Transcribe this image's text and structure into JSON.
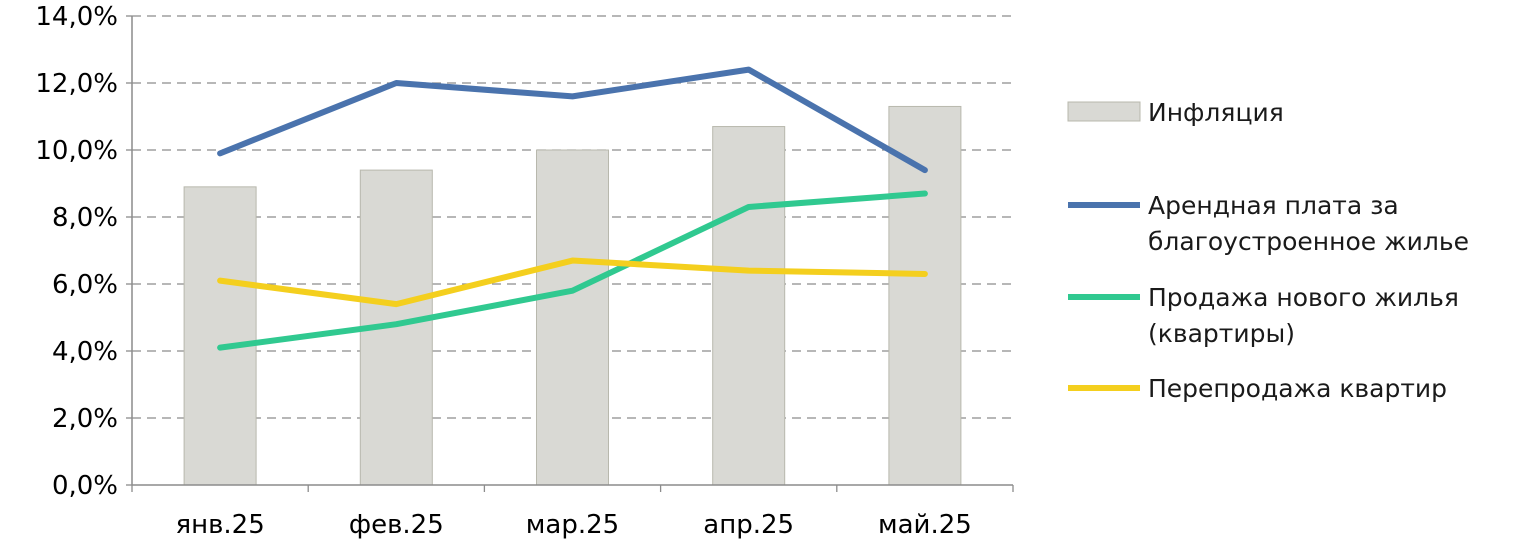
{
  "chart_data": {
    "type": "bar",
    "categories": [
      "янв.25",
      "фев.25",
      "мар.25",
      "апр.25",
      "май.25"
    ],
    "ylim": [
      0,
      14
    ],
    "y_ticks": [
      "0,0%",
      "2,0%",
      "4,0%",
      "6,0%",
      "8,0%",
      "10,0%",
      "12,0%",
      "14,0%"
    ],
    "grid": "horizontal dashed",
    "legend_position": "right",
    "series": [
      {
        "name": "Инфляция",
        "type": "bar",
        "color": "#d9d9d4",
        "values": [
          8.9,
          9.4,
          10.0,
          10.7,
          11.3
        ]
      },
      {
        "name": "Арендная плата за благоустроенное жилье",
        "name_lines": [
          "Арендная плата за",
          "благоустроенное жилье"
        ],
        "type": "line",
        "color": "#4a73ad",
        "values": [
          9.9,
          12.0,
          11.6,
          12.4,
          9.4
        ]
      },
      {
        "name": "Продажа нового жилья (квартиры)",
        "name_lines": [
          "Продажа нового жилья",
          "(квартиры)"
        ],
        "type": "line",
        "color": "#30c990",
        "values": [
          4.1,
          4.8,
          5.8,
          8.3,
          8.7
        ]
      },
      {
        "name": "Перепродажа квартир",
        "name_lines": [
          "Перепродажа квартир"
        ],
        "type": "line",
        "color": "#f4cf1e",
        "values": [
          6.1,
          5.4,
          6.7,
          6.4,
          6.3
        ]
      }
    ]
  }
}
